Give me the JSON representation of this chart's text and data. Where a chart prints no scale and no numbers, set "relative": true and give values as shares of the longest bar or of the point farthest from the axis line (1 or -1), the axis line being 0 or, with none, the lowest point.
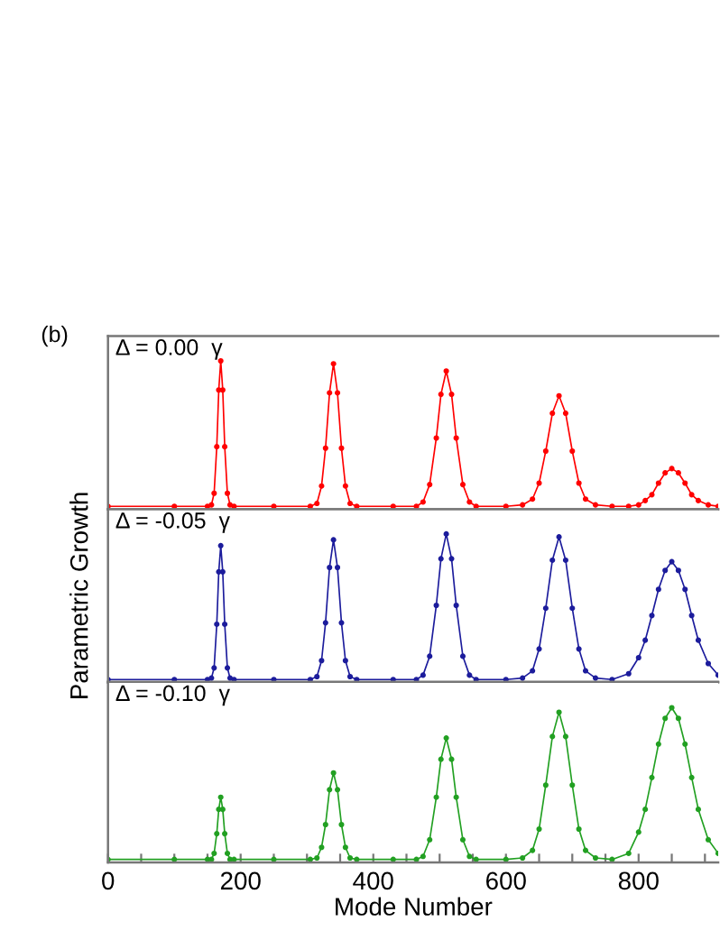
{
  "chart_data": [
    {
      "type": "line",
      "relative": true,
      "xlim": [
        0,
        920
      ],
      "tick_labels": false,
      "marker": "circle",
      "line_style": "solid",
      "annotations": [
        "(b)",
        "Δ = 0.00  γ"
      ],
      "x": [
        0,
        100,
        150,
        156,
        160,
        164,
        167,
        170,
        173,
        176,
        180,
        184,
        190,
        250,
        305,
        315,
        322,
        328,
        334,
        340,
        346,
        352,
        358,
        365,
        375,
        430,
        465,
        475,
        485,
        495,
        502,
        510,
        518,
        525,
        535,
        545,
        555,
        600,
        625,
        640,
        650,
        660,
        670,
        680,
        690,
        700,
        710,
        720,
        735,
        760,
        785,
        800,
        810,
        820,
        830,
        840,
        850,
        860,
        870,
        880,
        890,
        905,
        920
      ],
      "series": [
        {
          "color": "#ff0000",
          "values": [
            0,
            0,
            0,
            0.01,
            0.09,
            0.41,
            0.8,
            1,
            0.8,
            0.41,
            0.09,
            0.01,
            0,
            0,
            0,
            0.02,
            0.14,
            0.4,
            0.78,
            0.98,
            0.78,
            0.4,
            0.14,
            0.02,
            0,
            0,
            0,
            0.03,
            0.15,
            0.47,
            0.77,
            0.93,
            0.77,
            0.47,
            0.15,
            0.03,
            0,
            0,
            0.01,
            0.05,
            0.16,
            0.38,
            0.64,
            0.76,
            0.64,
            0.38,
            0.16,
            0.05,
            0.01,
            0,
            0,
            0.01,
            0.04,
            0.08,
            0.16,
            0.23,
            0.26,
            0.23,
            0.16,
            0.08,
            0.04,
            0.01,
            0
          ]
        }
      ]
    },
    {
      "type": "line",
      "relative": true,
      "xlim": [
        0,
        920
      ],
      "tick_labels": false,
      "marker": "circle",
      "line_style": "solid",
      "ylabel": "Parametric Growth",
      "annotations": [
        "Δ = -0.05  γ"
      ],
      "x": [
        0,
        100,
        150,
        156,
        160,
        164,
        167,
        170,
        173,
        176,
        180,
        184,
        190,
        250,
        305,
        315,
        322,
        328,
        334,
        340,
        346,
        352,
        358,
        365,
        375,
        430,
        465,
        475,
        485,
        495,
        502,
        510,
        518,
        525,
        535,
        545,
        555,
        600,
        625,
        640,
        650,
        660,
        670,
        680,
        690,
        700,
        710,
        720,
        735,
        760,
        785,
        800,
        810,
        820,
        830,
        840,
        850,
        860,
        870,
        880,
        890,
        905,
        920
      ],
      "series": [
        {
          "color": "#1c1c9c",
          "values": [
            0,
            0,
            0,
            0.01,
            0.08,
            0.38,
            0.74,
            0.92,
            0.74,
            0.38,
            0.08,
            0.01,
            0,
            0,
            0,
            0.02,
            0.13,
            0.39,
            0.77,
            0.96,
            0.77,
            0.39,
            0.13,
            0.02,
            0,
            0,
            0,
            0.03,
            0.16,
            0.51,
            0.83,
            1,
            0.83,
            0.51,
            0.16,
            0.03,
            0,
            0,
            0.01,
            0.06,
            0.21,
            0.49,
            0.82,
            0.98,
            0.82,
            0.49,
            0.21,
            0.06,
            0.01,
            0,
            0.04,
            0.15,
            0.27,
            0.44,
            0.62,
            0.75,
            0.81,
            0.75,
            0.62,
            0.44,
            0.27,
            0.11,
            0.03
          ]
        }
      ]
    },
    {
      "type": "line",
      "relative": true,
      "xlim": [
        0,
        920
      ],
      "tick_labels": "x",
      "marker": "circle",
      "line_style": "solid",
      "xlabel": "Mode Number",
      "xticks": [
        0,
        {
          "value": 50,
          "label": null
        },
        {
          "value": 100,
          "label": null
        },
        {
          "value": 150,
          "label": null
        },
        200,
        {
          "value": 250,
          "label": null
        },
        {
          "value": 300,
          "label": null
        },
        {
          "value": 350,
          "label": null
        },
        400,
        {
          "value": 450,
          "label": null
        },
        {
          "value": 500,
          "label": null
        },
        {
          "value": 550,
          "label": null
        },
        600,
        {
          "value": 650,
          "label": null
        },
        {
          "value": 700,
          "label": null
        },
        {
          "value": 750,
          "label": null
        },
        800,
        {
          "value": 850,
          "label": null
        },
        {
          "value": 900,
          "label": null
        }
      ],
      "annotations": [
        "Δ = -0.10  γ"
      ],
      "x": [
        0,
        100,
        150,
        156,
        160,
        164,
        167,
        170,
        173,
        176,
        180,
        184,
        190,
        250,
        305,
        315,
        322,
        328,
        334,
        340,
        346,
        352,
        358,
        365,
        375,
        430,
        465,
        475,
        485,
        495,
        502,
        510,
        518,
        525,
        535,
        545,
        555,
        600,
        625,
        640,
        650,
        660,
        670,
        680,
        690,
        700,
        710,
        720,
        735,
        760,
        785,
        800,
        810,
        820,
        830,
        840,
        850,
        860,
        870,
        880,
        890,
        905,
        920
      ],
      "series": [
        {
          "color": "#22a022",
          "values": [
            0,
            0,
            0,
            0,
            0.04,
            0.17,
            0.33,
            0.41,
            0.33,
            0.17,
            0.04,
            0,
            0,
            0,
            0,
            0.01,
            0.08,
            0.23,
            0.46,
            0.57,
            0.46,
            0.23,
            0.08,
            0.01,
            0,
            0,
            0,
            0.02,
            0.13,
            0.41,
            0.66,
            0.8,
            0.66,
            0.41,
            0.13,
            0.02,
            0,
            0,
            0.01,
            0.06,
            0.2,
            0.49,
            0.81,
            0.97,
            0.81,
            0.49,
            0.2,
            0.06,
            0.01,
            0,
            0.04,
            0.18,
            0.33,
            0.54,
            0.76,
            0.93,
            1,
            0.93,
            0.76,
            0.54,
            0.33,
            0.13,
            0.04
          ]
        }
      ]
    }
  ]
}
